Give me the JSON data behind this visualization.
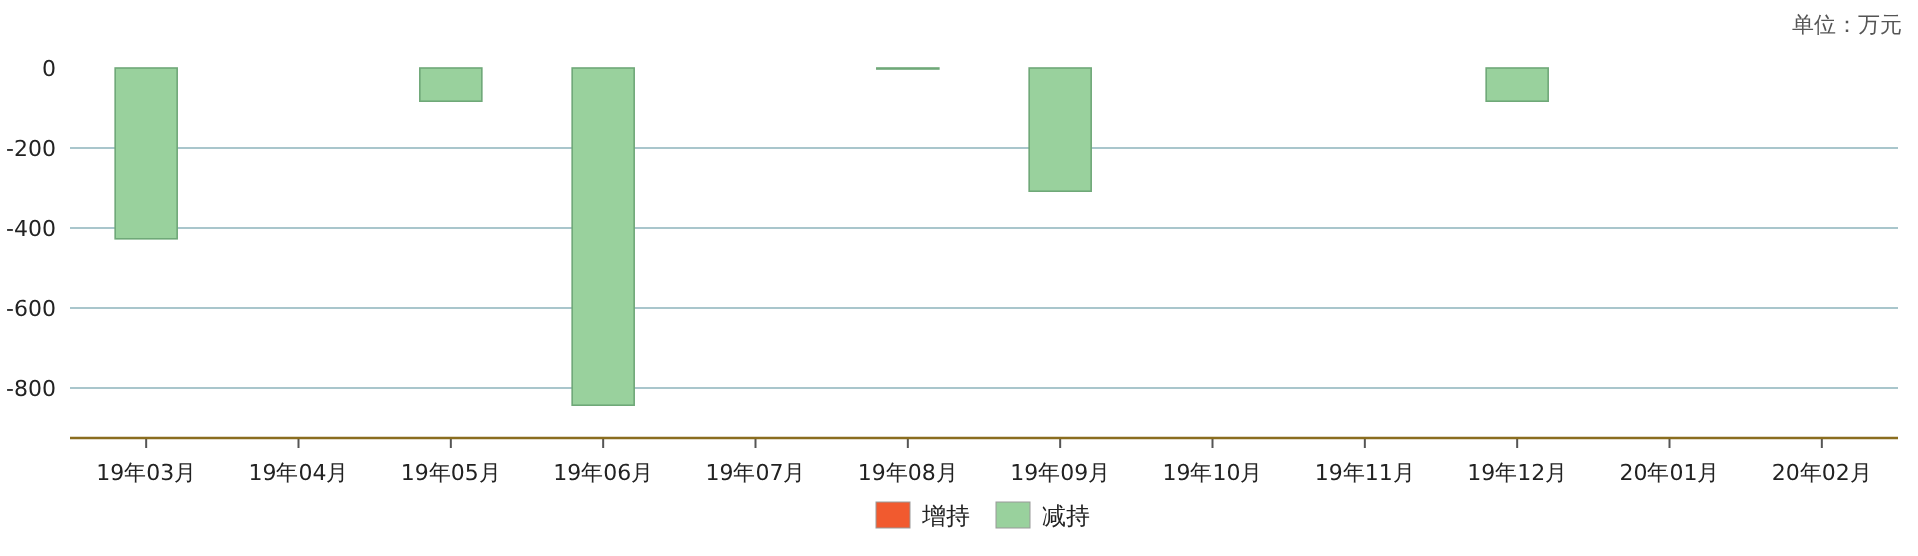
{
  "chart_data": {
    "type": "bar",
    "categories": [
      "19年03月",
      "19年04月",
      "19年05月",
      "19年06月",
      "19年07月",
      "19年08月",
      "19年09月",
      "19年10月",
      "19年11月",
      "19年12月",
      "20年01月",
      "20年02月"
    ],
    "series": [
      {
        "name": "增持",
        "color": "#f15a2f",
        "values": [
          null,
          null,
          null,
          null,
          null,
          null,
          null,
          null,
          null,
          null,
          null,
          null
        ]
      },
      {
        "name": "减持",
        "color": "#99d19d",
        "values": [
          -427,
          null,
          -83,
          -843,
          null,
          -2,
          -308,
          null,
          null,
          -83,
          null,
          null
        ]
      }
    ],
    "ylim": [
      -925,
      0
    ],
    "yticks": [
      0,
      -200,
      -400,
      -600,
      -800
    ],
    "grid": "y",
    "legend": "bottom",
    "annotations": [
      "单位：万元"
    ]
  }
}
